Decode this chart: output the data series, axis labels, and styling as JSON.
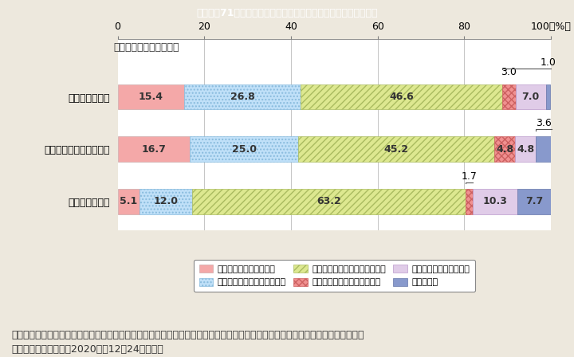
{
  "title": "Ｉ－特－71図　家庭内の家事・育児分担の変化と夫婦関係の変化",
  "title_bg": "#2abcd4",
  "categories": [
    "夫の役割が増加",
    "夫・妻ともに役割が増加",
    "妻の役割が増加"
  ],
  "header_label": "＜役割分担の変化内容＞",
  "segments": [
    [
      15.4,
      26.8,
      46.6,
      3.0,
      7.0,
      1.0
    ],
    [
      16.7,
      25.0,
      45.2,
      4.8,
      4.8,
      3.6
    ],
    [
      5.1,
      12.0,
      63.2,
      1.7,
      10.3,
      7.7
    ]
  ],
  "outside_labels": [
    {
      "idx": 3,
      "val": "3.0",
      "above": true
    },
    {
      "idx": 5,
      "val": "1.0",
      "above": true
    },
    null,
    {
      "idx": 5,
      "val": "3.6",
      "above": true
    },
    null,
    {
      "idx": 3,
      "val": "1.7",
      "above": true
    }
  ],
  "legend_labels": [
    "夫妻の関係が良くなった",
    "夫妻の関係がやや良くなった",
    "夫妻の関係はおおむね変化ない",
    "夫妻の関係がやや悪くなった",
    "夫妻の関係が悪くなった",
    "わからない"
  ],
  "footnote1": "（備考）１．内閣府「第２回　新型コロナウイルス感染症の影響下における生活意識・行動の変化に関する調査」より引用・作成。",
  "footnote2": "　　　　２．令和２（2020）年12月24日公表。",
  "bg_color": "#ede8dd",
  "plot_bg": "#ffffff"
}
